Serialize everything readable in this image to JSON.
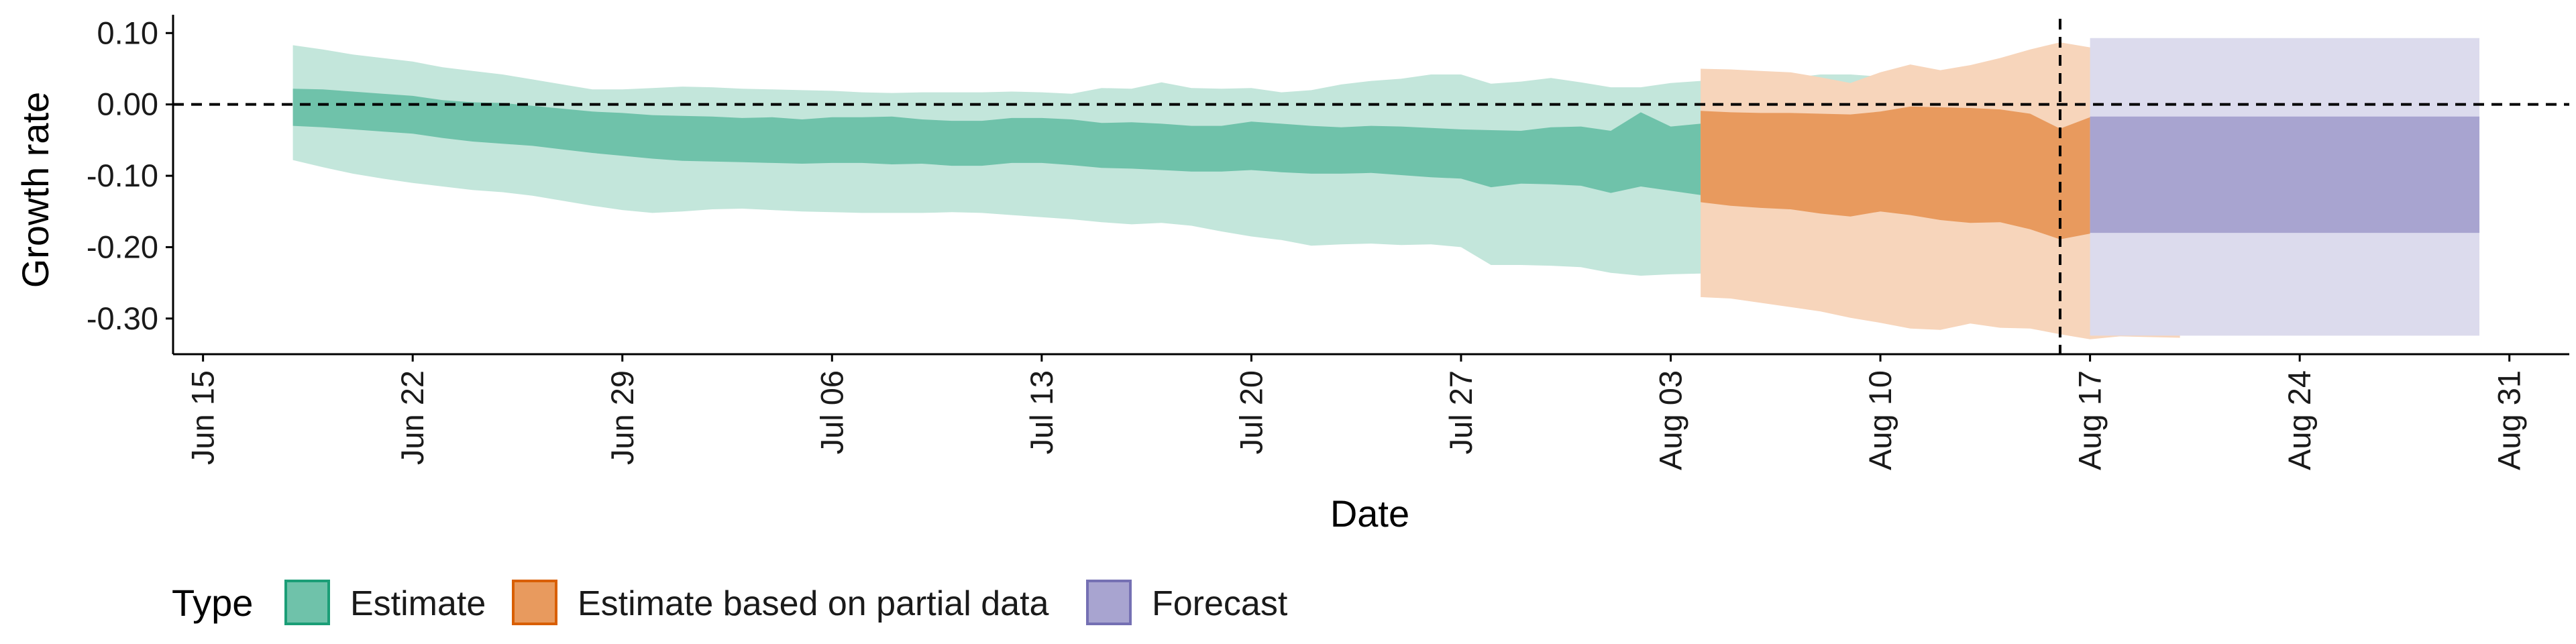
{
  "chart_data": {
    "type": "area",
    "xlabel": "Date",
    "ylabel": "Growth rate",
    "x_ticks": [
      "Jun 15",
      "Jun 22",
      "Jun 29",
      "Jul 06",
      "Jul 13",
      "Jul 20",
      "Jul 27",
      "Aug 03",
      "Aug 10",
      "Aug 17",
      "Aug 24",
      "Aug 31"
    ],
    "y_ticks": [
      "0.10",
      "0.00",
      "-0.10",
      "-0.20",
      "-0.30"
    ],
    "xlim": [
      "2020-06-14",
      "2020-09-02"
    ],
    "ylim": [
      -0.35,
      0.12
    ],
    "reference_lines": {
      "horizontal_y": 0.0,
      "vertical_date": "2020-08-16"
    },
    "legend": {
      "title": "Type",
      "position": "bottom-left",
      "entries": [
        "Estimate",
        "Estimate based on partial data",
        "Forecast"
      ]
    },
    "colors": {
      "Estimate": {
        "inner": "#6fc2aa",
        "outer": "#c3e6db",
        "border": "#1b9e77"
      },
      "Estimate based on partial data": {
        "inner": "#e89a5e",
        "outer": "#f7d5bb",
        "border": "#d95f02"
      },
      "Forecast": {
        "inner": "#a8a4d0",
        "outer": "#dcdbed",
        "border": "#7570b3"
      }
    },
    "series": [
      {
        "name": "Estimate",
        "start_date": "2020-06-18",
        "lower90": [
          -0.078,
          -0.088,
          -0.097,
          -0.104,
          -0.11,
          -0.115,
          -0.12,
          -0.123,
          -0.128,
          -0.135,
          -0.142,
          -0.148,
          -0.152,
          -0.15,
          -0.147,
          -0.146,
          -0.148,
          -0.15,
          -0.151,
          -0.152,
          -0.152,
          -0.152,
          -0.151,
          -0.152,
          -0.155,
          -0.158,
          -0.161,
          -0.165,
          -0.168,
          -0.166,
          -0.17,
          -0.178,
          -0.185,
          -0.19,
          -0.198,
          -0.196,
          -0.195,
          -0.197,
          -0.196,
          -0.2,
          -0.225,
          -0.225,
          -0.226,
          -0.228,
          -0.236,
          -0.24,
          -0.238,
          -0.237,
          -0.24,
          -0.242,
          -0.246,
          -0.243,
          -0.257,
          -0.256,
          -0.258,
          -0.258,
          -0.261
        ],
        "lower50": [
          -0.03,
          -0.032,
          -0.035,
          -0.038,
          -0.041,
          -0.047,
          -0.052,
          -0.055,
          -0.058,
          -0.063,
          -0.068,
          -0.072,
          -0.076,
          -0.079,
          -0.08,
          -0.081,
          -0.082,
          -0.083,
          -0.082,
          -0.082,
          -0.084,
          -0.083,
          -0.086,
          -0.086,
          -0.082,
          -0.082,
          -0.085,
          -0.089,
          -0.09,
          -0.092,
          -0.094,
          -0.094,
          -0.092,
          -0.095,
          -0.097,
          -0.097,
          -0.096,
          -0.099,
          -0.102,
          -0.104,
          -0.116,
          -0.111,
          -0.112,
          -0.114,
          -0.124,
          -0.115,
          -0.121,
          -0.127,
          -0.132,
          -0.118,
          -0.129,
          -0.125,
          -0.134,
          -0.134,
          -0.123,
          -0.138,
          -0.14
        ],
        "upper50": [
          0.022,
          0.021,
          0.018,
          0.015,
          0.012,
          0.006,
          0.003,
          0.002,
          -0.002,
          -0.006,
          -0.01,
          -0.012,
          -0.015,
          -0.016,
          -0.017,
          -0.019,
          -0.018,
          -0.021,
          -0.018,
          -0.018,
          -0.017,
          -0.021,
          -0.023,
          -0.023,
          -0.019,
          -0.019,
          -0.021,
          -0.026,
          -0.025,
          -0.027,
          -0.03,
          -0.03,
          -0.024,
          -0.027,
          -0.03,
          -0.032,
          -0.03,
          -0.031,
          -0.033,
          -0.035,
          -0.036,
          -0.037,
          -0.032,
          -0.031,
          -0.037,
          -0.011,
          -0.031,
          -0.027,
          -0.031,
          -0.026,
          -0.028,
          -0.019,
          -0.024,
          -0.023,
          -0.005,
          -0.015,
          -0.017
        ],
        "upper90": [
          0.083,
          0.077,
          0.07,
          0.065,
          0.06,
          0.052,
          0.047,
          0.042,
          0.035,
          0.028,
          0.021,
          0.021,
          0.023,
          0.025,
          0.024,
          0.022,
          0.021,
          0.02,
          0.019,
          0.017,
          0.016,
          0.017,
          0.017,
          0.017,
          0.018,
          0.017,
          0.015,
          0.023,
          0.022,
          0.031,
          0.023,
          0.022,
          0.023,
          0.017,
          0.02,
          0.028,
          0.033,
          0.036,
          0.042,
          0.042,
          0.029,
          0.032,
          0.037,
          0.031,
          0.024,
          0.024,
          0.03,
          0.033,
          0.035,
          0.037,
          0.037,
          0.042,
          0.042,
          0.039,
          0.042,
          0.045,
          0.045
        ]
      },
      {
        "name": "Estimate based on partial data",
        "start_date": "2020-08-04",
        "lower90": [
          -0.27,
          -0.272,
          -0.278,
          -0.284,
          -0.29,
          -0.299,
          -0.306,
          -0.314,
          -0.316,
          -0.307,
          -0.313,
          -0.314,
          -0.322,
          -0.329,
          -0.325,
          -0.326,
          -0.327
        ],
        "lower50": [
          -0.137,
          -0.142,
          -0.145,
          -0.147,
          -0.153,
          -0.157,
          -0.15,
          -0.155,
          -0.162,
          -0.166,
          -0.165,
          -0.175,
          -0.189,
          -0.181,
          -0.179,
          -0.183,
          -0.183
        ],
        "upper50": [
          -0.009,
          -0.011,
          -0.012,
          -0.012,
          -0.013,
          -0.014,
          -0.01,
          -0.003,
          -0.004,
          -0.005,
          -0.007,
          -0.013,
          -0.034,
          -0.018,
          -0.016,
          -0.017,
          -0.018
        ],
        "upper90": [
          0.05,
          0.049,
          0.047,
          0.045,
          0.038,
          0.03,
          0.045,
          0.056,
          0.048,
          0.055,
          0.065,
          0.077,
          0.087,
          0.08,
          0.087,
          0.091,
          0.092
        ]
      },
      {
        "name": "Forecast",
        "start_date": "2020-08-17",
        "end_date": "2020-08-30",
        "lower90": -0.324,
        "lower50": -0.18,
        "upper50": -0.017,
        "upper90": 0.093
      }
    ]
  }
}
